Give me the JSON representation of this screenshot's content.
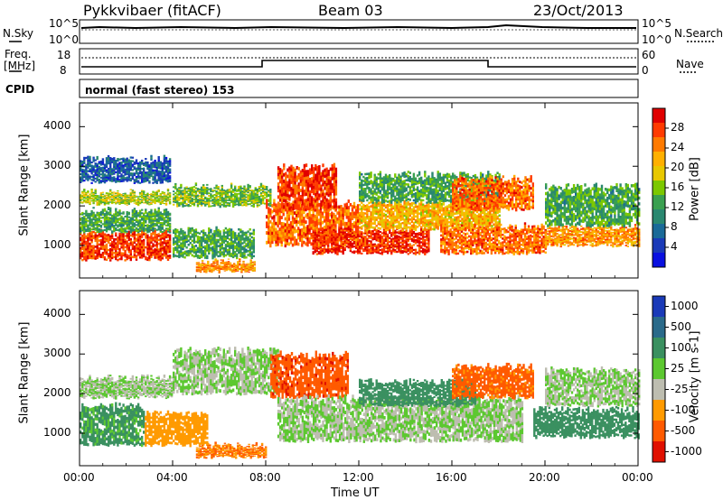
{
  "header": {
    "radar": "Pykkvibaer (fitACF)",
    "beam": "Beam 03",
    "date": "23/Oct/2013"
  },
  "panel_labels": {
    "nsky": "N.Sky",
    "nsearch": "N.Search",
    "freq_top": "Freq.",
    "freq_unit": "[MHz]",
    "nave": "Nave",
    "cpid": "CPID",
    "mode": "normal (fast stereo) 153",
    "tick_1e5_left": "10^5",
    "tick_1e0_left": "10^0",
    "tick_1e5_right": "10^5",
    "tick_1e0_right": "10^0",
    "freq_18": "18",
    "freq_8": "8",
    "nave_60": "60",
    "nave_0": "0"
  },
  "x_axis": {
    "label": "Time UT",
    "ticks": [
      "00:00",
      "04:00",
      "08:00",
      "12:00",
      "16:00",
      "20:00",
      "00:00"
    ]
  },
  "y_axis": {
    "label": "Slant Range [km]",
    "ticks": [
      "4000",
      "3000",
      "2000",
      "1000"
    ]
  },
  "power_bar": {
    "label": "Power [dB]",
    "ticks": [
      "28",
      "24",
      "20",
      "16",
      "12",
      "8",
      "4"
    ],
    "colors": [
      "#e00000",
      "#ff3a00",
      "#ff7a00",
      "#ffb000",
      "#e8c800",
      "#7cc800",
      "#3aa050",
      "#2a8870",
      "#1a6a98",
      "#1a3ab8",
      "#0a10e0"
    ]
  },
  "velocity_bar": {
    "label": "Velocity [m s-1]",
    "ticks": [
      "1000",
      "500",
      "100",
      "25",
      "-25",
      "-100",
      "-500",
      "-1000"
    ],
    "colors": [
      "#1a3ab8",
      "#2a6a8a",
      "#3a9060",
      "#5cc830",
      "#bdbdb0",
      "#ff9a00",
      "#ff5a00",
      "#e01000"
    ]
  },
  "chart_data": [
    {
      "type": "heatmap",
      "title": "Power",
      "xlabel": "Time UT",
      "ylabel": "Slant Range [km]",
      "xlim": [
        0,
        24
      ],
      "ylim": [
        180,
        4600
      ],
      "colorbar_label": "Power [dB]",
      "colorbar_range": [
        0,
        30
      ],
      "bands": [
        {
          "t": [
            0.0,
            3.9
          ],
          "range": [
            650,
            1350
          ],
          "value": 26
        },
        {
          "t": [
            0.0,
            3.9
          ],
          "range": [
            1350,
            1900
          ],
          "value": 12
        },
        {
          "t": [
            0.0,
            3.9
          ],
          "range": [
            2050,
            2350
          ],
          "value": 16
        },
        {
          "t": [
            0.0,
            3.9
          ],
          "range": [
            2600,
            3200
          ],
          "value": 6
        },
        {
          "t": [
            4.0,
            7.5
          ],
          "range": [
            700,
            1400
          ],
          "value": 12
        },
        {
          "t": [
            4.0,
            8.2
          ],
          "range": [
            2000,
            2500
          ],
          "value": 14
        },
        {
          "t": [
            5.0,
            7.5
          ],
          "range": [
            350,
            600
          ],
          "value": 22
        },
        {
          "t": [
            8.0,
            12.0
          ],
          "range": [
            1000,
            2100
          ],
          "value": 24
        },
        {
          "t": [
            8.5,
            11.0
          ],
          "range": [
            1900,
            3000
          ],
          "value": 26
        },
        {
          "t": [
            10.0,
            15.0
          ],
          "range": [
            800,
            1400
          ],
          "value": 27
        },
        {
          "t": [
            12.0,
            18.0
          ],
          "range": [
            1400,
            2100
          ],
          "value": 20
        },
        {
          "t": [
            12.0,
            18.0
          ],
          "range": [
            2100,
            2800
          ],
          "value": 12
        },
        {
          "t": [
            15.5,
            20.0
          ],
          "range": [
            800,
            1500
          ],
          "value": 24
        },
        {
          "t": [
            16.0,
            19.5
          ],
          "range": [
            1900,
            2700
          ],
          "value": 24
        },
        {
          "t": [
            20.0,
            24.0
          ],
          "range": [
            1000,
            1500
          ],
          "value": 22
        },
        {
          "t": [
            20.0,
            24.0
          ],
          "range": [
            1500,
            2500
          ],
          "value": 12
        }
      ]
    },
    {
      "type": "heatmap",
      "title": "Velocity",
      "xlabel": "Time UT",
      "ylabel": "Slant Range [km]",
      "xlim": [
        0,
        24
      ],
      "ylim": [
        180,
        4600
      ],
      "colorbar_label": "Velocity [m s-1]",
      "colorbar_range": [
        -1000,
        1000
      ],
      "bands": [
        {
          "t": [
            0.0,
            2.8
          ],
          "range": [
            700,
            1700
          ],
          "value": 90
        },
        {
          "t": [
            2.8,
            5.5
          ],
          "range": [
            700,
            1500
          ],
          "value": -200
        },
        {
          "t": [
            0.0,
            4.0
          ],
          "range": [
            1900,
            2400
          ],
          "value": 0
        },
        {
          "t": [
            4.0,
            8.5
          ],
          "range": [
            2000,
            3100
          ],
          "value": 0
        },
        {
          "t": [
            5.0,
            8.0
          ],
          "range": [
            400,
            700
          ],
          "value": -300
        },
        {
          "t": [
            8.2,
            11.5
          ],
          "range": [
            1900,
            3000
          ],
          "value": -600
        },
        {
          "t": [
            8.5,
            19.0
          ],
          "range": [
            800,
            1900
          ],
          "value": 0
        },
        {
          "t": [
            12.0,
            17.0
          ],
          "range": [
            1700,
            2300
          ],
          "value": 200
        },
        {
          "t": [
            16.0,
            19.5
          ],
          "range": [
            1900,
            2700
          ],
          "value": -400
        },
        {
          "t": [
            19.5,
            24.0
          ],
          "range": [
            900,
            1600
          ],
          "value": 150
        },
        {
          "t": [
            20.0,
            24.0
          ],
          "range": [
            1700,
            2600
          ],
          "value": 0
        }
      ]
    }
  ]
}
